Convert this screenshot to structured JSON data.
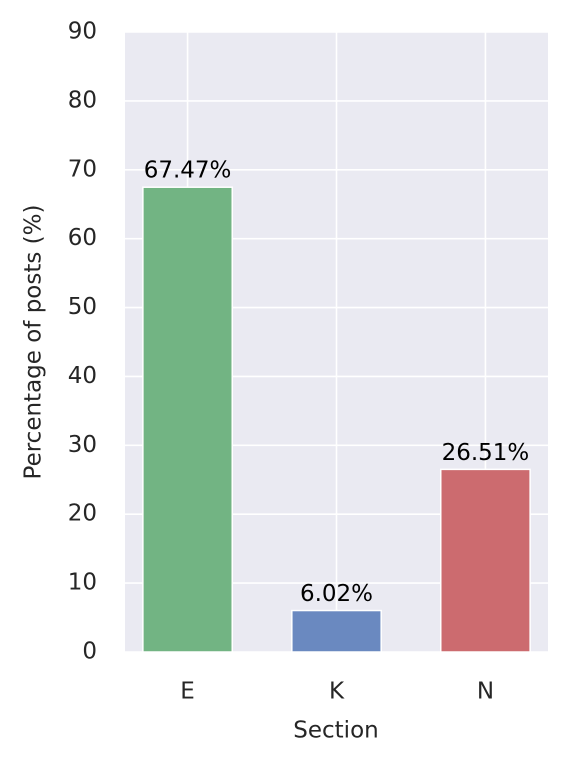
{
  "chart_data": {
    "type": "bar",
    "categories": [
      "E",
      "K",
      "N"
    ],
    "values": [
      67.47,
      6.02,
      26.51
    ],
    "value_labels": [
      "67.47%",
      "6.02%",
      "26.51%"
    ],
    "colors": [
      "#72b483",
      "#6a89c0",
      "#cc6b6f"
    ],
    "xlabel": "Section",
    "ylabel": "Percentage of posts (%)",
    "ylim": [
      0,
      90
    ],
    "yticks": [
      0,
      10,
      20,
      30,
      40,
      50,
      60,
      70,
      80,
      90
    ],
    "grid": true
  }
}
